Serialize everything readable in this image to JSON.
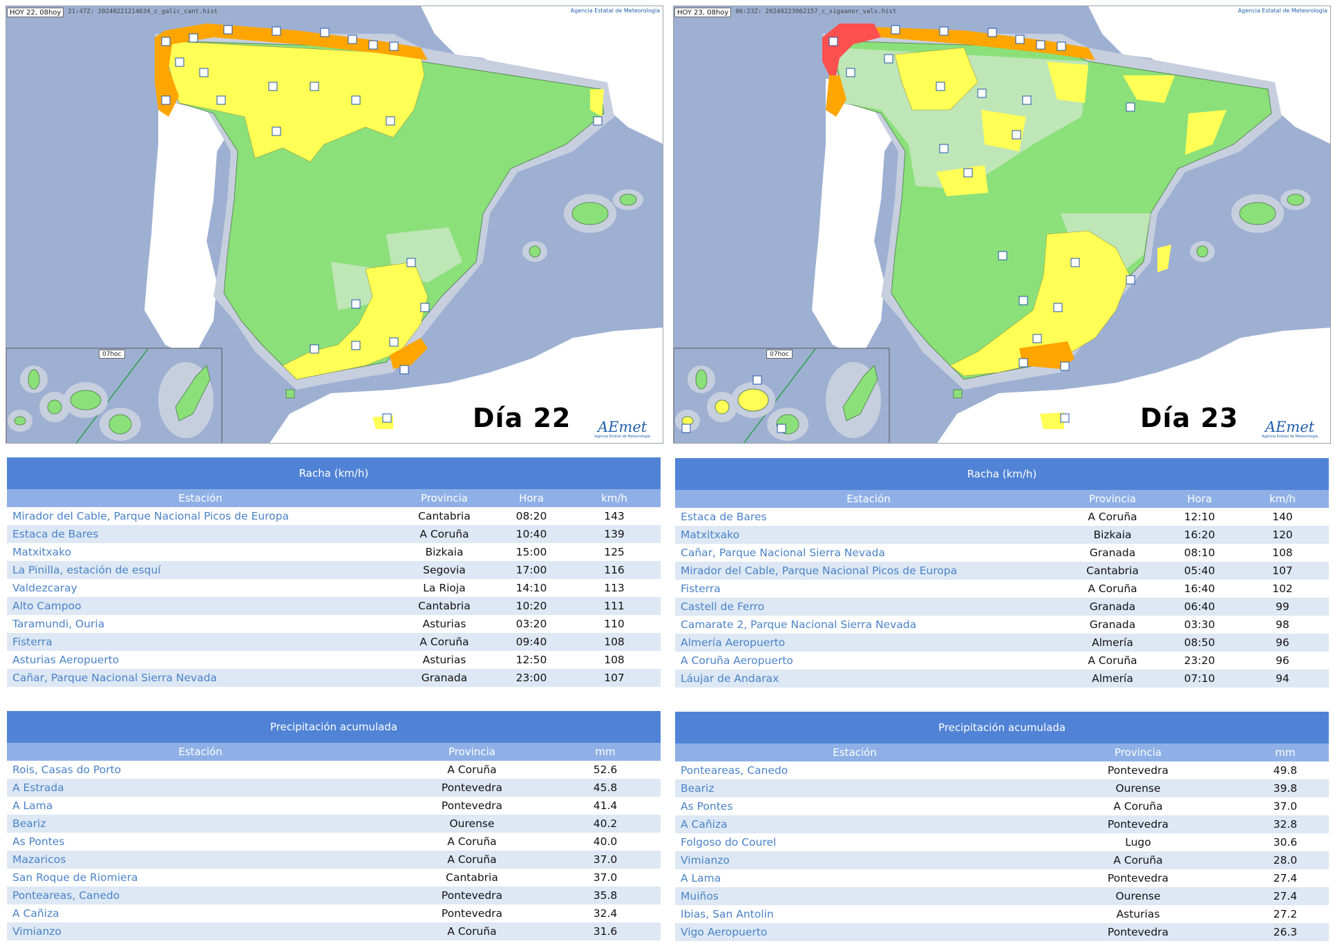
{
  "maps": [
    {
      "date_badge": "HOY 22, 08hoy",
      "file_label": "21:47Z: 20240221214634_c_galic_cant.hist",
      "agency": "Agencia Estatal de Meteorología",
      "inset_label": "07hoc",
      "day_label": "Día 22",
      "logo": "AEmet",
      "logo_sub": "Agencia Estatal de Meteorología"
    },
    {
      "date_badge": "HOY 23, 08hoy",
      "file_label": "06:23Z: 20240223062157_c_sigaanor_vals.hist",
      "agency": "Agencia Estatal de Meteorología",
      "inset_label": "07hoc",
      "day_label": "Día 23",
      "logo": "AEmet",
      "logo_sub": "Agencia Estatal de Meteorología"
    }
  ],
  "colors": {
    "sea": "#9eb0d2",
    "land_green": "#8be07a",
    "land_light_green": "#bfe6b6",
    "alert_yellow": "#ffff55",
    "alert_orange": "#ffa500",
    "alert_red": "#ff5050",
    "portugal": "#ffffff",
    "header_blue": "#5083d6",
    "subheader_blue": "#8fb0e6",
    "link_blue": "#4a82c8"
  },
  "tables": {
    "wind_22": {
      "title": "Racha (km/h)",
      "headers": {
        "station": "Estación",
        "province": "Provincia",
        "time": "Hora",
        "value": "km/h"
      },
      "rows": [
        [
          "Mirador del Cable, Parque Nacional Picos de Europa",
          "Cantabria",
          "08:20",
          "143"
        ],
        [
          "Estaca de Bares",
          "A Coruña",
          "10:40",
          "139"
        ],
        [
          "Matxitxako",
          "Bizkaia",
          "15:00",
          "125"
        ],
        [
          "La Pinilla, estación de esquí",
          "Segovia",
          "17:00",
          "116"
        ],
        [
          "Valdezcaray",
          "La Rioja",
          "14:10",
          "113"
        ],
        [
          "Alto Campoo",
          "Cantabria",
          "10:20",
          "111"
        ],
        [
          "Taramundi, Ouria",
          "Asturias",
          "03:20",
          "110"
        ],
        [
          "Fisterra",
          "A Coruña",
          "09:40",
          "108"
        ],
        [
          "Asturias Aeropuerto",
          "Asturias",
          "12:50",
          "108"
        ],
        [
          "Cañar, Parque Nacional Sierra Nevada",
          "Granada",
          "23:00",
          "107"
        ]
      ]
    },
    "wind_23": {
      "title": "Racha (km/h)",
      "headers": {
        "station": "Estación",
        "province": "Provincia",
        "time": "Hora",
        "value": "km/h"
      },
      "rows": [
        [
          "Estaca de Bares",
          "A Coruña",
          "12:10",
          "140"
        ],
        [
          "Matxitxako",
          "Bizkaia",
          "16:20",
          "120"
        ],
        [
          "Cañar, Parque Nacional Sierra Nevada",
          "Granada",
          "08:10",
          "108"
        ],
        [
          "Mirador del Cable, Parque Nacional Picos de Europa",
          "Cantabria",
          "05:40",
          "107"
        ],
        [
          "Fisterra",
          "A Coruña",
          "16:40",
          "102"
        ],
        [
          "Castell de Ferro",
          "Granada",
          "06:40",
          "99"
        ],
        [
          "Camarate 2, Parque Nacional Sierra Nevada",
          "Granada",
          "03:30",
          "98"
        ],
        [
          "Almería Aeropuerto",
          "Almería",
          "08:50",
          "96"
        ],
        [
          "A Coruña Aeropuerto",
          "A Coruña",
          "23:20",
          "96"
        ],
        [
          "Láujar de Andarax",
          "Almería",
          "07:10",
          "94"
        ]
      ]
    },
    "precip_22": {
      "title": "Precipitación acumulada",
      "headers": {
        "station": "Estación",
        "province": "Provincia",
        "value": "mm"
      },
      "rows": [
        [
          "Rois, Casas do Porto",
          "A Coruña",
          "52.6"
        ],
        [
          "A Estrada",
          "Pontevedra",
          "45.8"
        ],
        [
          "A Lama",
          "Pontevedra",
          "41.4"
        ],
        [
          "Beariz",
          "Ourense",
          "40.2"
        ],
        [
          "As Pontes",
          "A Coruña",
          "40.0"
        ],
        [
          "Mazaricos",
          "A Coruña",
          "37.0"
        ],
        [
          "San Roque de Riomiera",
          "Cantabria",
          "37.0"
        ],
        [
          "Ponteareas, Canedo",
          "Pontevedra",
          "35.8"
        ],
        [
          "A Cañiza",
          "Pontevedra",
          "32.4"
        ],
        [
          "Vimianzo",
          "A Coruña",
          "31.6"
        ]
      ]
    },
    "precip_23": {
      "title": "Precipitación acumulada",
      "headers": {
        "station": "Estación",
        "province": "Provincia",
        "value": "mm"
      },
      "rows": [
        [
          "Ponteareas, Canedo",
          "Pontevedra",
          "49.8"
        ],
        [
          "Beariz",
          "Ourense",
          "39.8"
        ],
        [
          "As Pontes",
          "A Coruña",
          "37.0"
        ],
        [
          "A Cañiza",
          "Pontevedra",
          "32.8"
        ],
        [
          "Folgoso do Courel",
          "Lugo",
          "30.6"
        ],
        [
          "Vimianzo",
          "A Coruña",
          "28.0"
        ],
        [
          "A Lama",
          "Pontevedra",
          "27.4"
        ],
        [
          "Muiños",
          "Ourense",
          "27.4"
        ],
        [
          "Ibias, San Antolin",
          "Asturias",
          "27.2"
        ],
        [
          "Vigo Aeropuerto",
          "Pontevedra",
          "26.3"
        ]
      ]
    }
  }
}
